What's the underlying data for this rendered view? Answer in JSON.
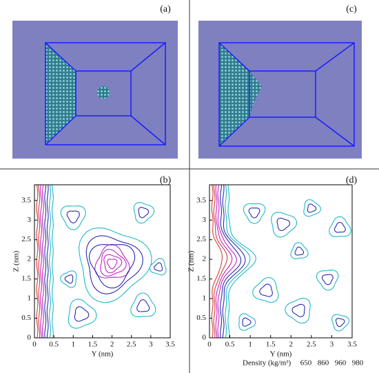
{
  "panels": [
    {
      "label": "(a)"
    },
    {
      "label": "(c)"
    },
    {
      "label": "(b)",
      "xlabel": "Y (nm)",
      "ylabel": "Z (nm)",
      "xlim": [
        0,
        3.5
      ],
      "ylim": [
        0,
        3.9
      ],
      "xticks": [
        0,
        0.5,
        1,
        1.5,
        2,
        2.5,
        3,
        3.5
      ],
      "yticks": [
        0,
        0.5,
        1,
        1.5,
        2,
        2.5,
        3,
        3.5
      ]
    },
    {
      "label": "(d)",
      "xlabel": "Y (nm)",
      "ylabel": "Z (nm)",
      "xlim": [
        0,
        3.5
      ],
      "ylim": [
        0,
        3.9
      ],
      "xticks": [
        0,
        0.5,
        1,
        1.5,
        2,
        2.5,
        3,
        3.5
      ],
      "yticks": [
        0,
        0.5,
        1,
        1.5,
        2,
        2.5,
        3,
        3.5
      ]
    }
  ],
  "legend": {
    "title": "Density (kg/m³)",
    "entries": [
      {
        "label": "650",
        "color": "#d23c3c"
      },
      {
        "label": "860",
        "color": "#c026c0"
      },
      {
        "label": "960",
        "color": "#2a2ab0"
      },
      {
        "label": "980",
        "color": "#1fb8c8"
      }
    ]
  }
}
